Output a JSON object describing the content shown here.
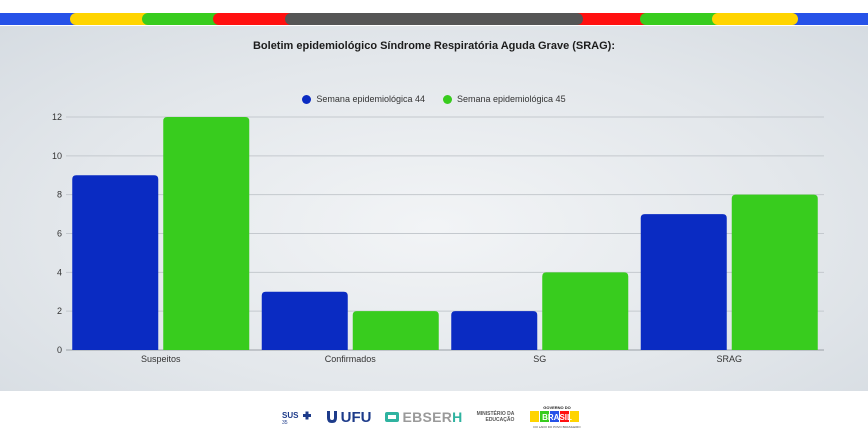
{
  "chart_data": {
    "type": "bar",
    "title": "Boletim epidemiológico Síndrome Respiratória Aguda Grave (SRAG):",
    "categories": [
      "Suspeitos",
      "Confirmados",
      "SG",
      "SRAG"
    ],
    "series": [
      {
        "name": "Semana epidemiológica 44",
        "color": "#0a2bc2",
        "values": [
          9,
          3,
          2,
          7
        ]
      },
      {
        "name": "Semana epidemiológica 45",
        "color": "#38cc1e",
        "values": [
          12,
          2,
          4,
          8
        ]
      }
    ],
    "yticks": [
      "0",
      "2",
      "4",
      "6",
      "8",
      "10",
      "12"
    ],
    "ylim": [
      0,
      12
    ],
    "grid": true,
    "legend_position": "top-center"
  },
  "footer": {
    "sus_logo": "SUS 35 ANOS",
    "ufu_logo": "UFU",
    "ebserh_logo": "EBSER",
    "ebserh_logo_h": "H",
    "ministerio_logo_line1": "MINISTÉRIO DA",
    "ministerio_logo_line2": "EDUCAÇÃO",
    "governo_logo_line1": "GOVERNO DO",
    "governo_logo_line2": "BRASIL",
    "governo_logo_line3": "DO LADO DO POVO BRASILEIRO"
  },
  "colors": {
    "stripe": [
      "#2652e8",
      "#ffd400",
      "#38cc1e",
      "#ff1010",
      "#555555",
      "#ff1010",
      "#38cc1e",
      "#ffd400",
      "#2652e8"
    ]
  }
}
